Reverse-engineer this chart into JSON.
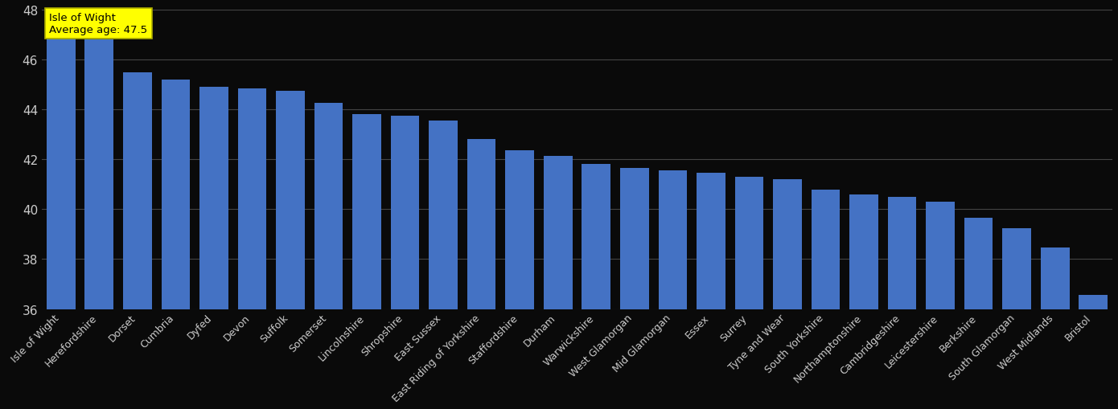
{
  "categories": [
    "Isle of Wight",
    "Herefordshire",
    "Dorset",
    "Cumbria",
    "Dyfed",
    "Devon",
    "Suffolk",
    "Somerset",
    "Lincolnshire",
    "Shropshire",
    "East Sussex",
    "East Riding of Yorkshire",
    "Staffordshire",
    "Durham",
    "Warwickshire",
    "West Glamorgan",
    "Mid Glamorgan",
    "Essex",
    "Surrey",
    "Tyne and Wear",
    "South Yorkshire",
    "Northamptonshire",
    "Cambridgeshire",
    "Leicestershire",
    "Berkshire",
    "South Glamorgan",
    "West Midlands",
    "Bristol"
  ],
  "values": [
    47.5,
    46.8,
    45.5,
    45.2,
    44.9,
    44.85,
    44.75,
    44.25,
    43.8,
    43.75,
    43.55,
    42.8,
    42.35,
    42.15,
    41.8,
    41.65,
    41.55,
    41.45,
    41.3,
    41.2,
    40.8,
    40.6,
    40.5,
    40.3,
    39.65,
    39.25,
    38.45,
    36.55
  ],
  "bar_color": "#4472c4",
  "background_color": "#0a0a0a",
  "text_color": "#cccccc",
  "annotation_box_facecolor": "#ffff00",
  "annotation_box_edgecolor": "#aaaa00",
  "annotation_title": "Isle of Wight",
  "annotation_avg_label": "Average age: ",
  "annotation_avg_value": "47.5",
  "ylim_min": 36,
  "ylim_max": 48,
  "yticks": [
    36,
    38,
    40,
    42,
    44,
    46,
    48
  ],
  "grid_color": "#444444",
  "ytick_fontsize": 11,
  "xtick_fontsize": 9,
  "bar_width": 0.75,
  "bar_bottom": 36
}
